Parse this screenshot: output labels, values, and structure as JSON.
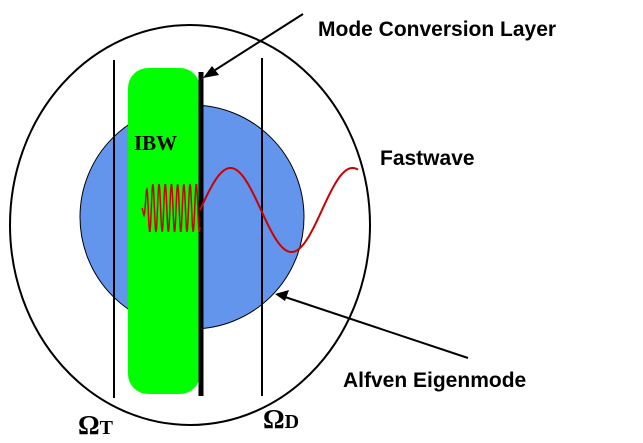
{
  "labels": {
    "mode_conversion_layer": "Mode Conversion Layer",
    "fastwave": "Fastwave",
    "alfven_eigenmode": "Alfven Eigenmode",
    "ibw": "IBW",
    "omega_t_symbol": "Ω",
    "omega_t_sub": "T",
    "omega_d_symbol": "Ω",
    "omega_d_sub": "D"
  },
  "colors": {
    "outline": "#000000",
    "ibw_region": "#00ff00",
    "alfven_region": "#6495ed",
    "wave": "#cc0000",
    "background": "#ffffff"
  }
}
